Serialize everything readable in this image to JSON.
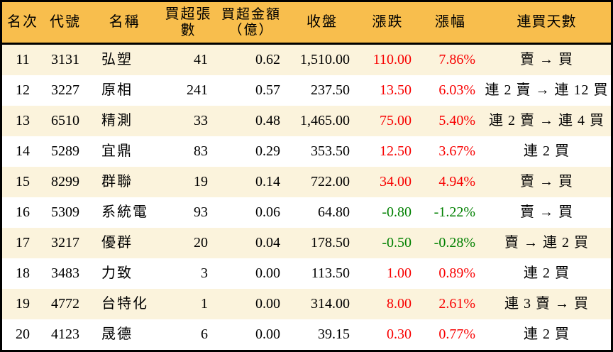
{
  "colors": {
    "header_bg": "#F8BE4D",
    "stripe_bg": "#FBF3DC",
    "row_bg": "#FFFFFF",
    "border": "#000000",
    "up_text": "#F80000",
    "down_text": "#008000",
    "text": "#000000"
  },
  "table": {
    "columns": [
      {
        "key": "rank",
        "label": "名次"
      },
      {
        "key": "code",
        "label": "代號"
      },
      {
        "key": "name",
        "label": "名稱"
      },
      {
        "key": "volume",
        "label": "買超張數"
      },
      {
        "key": "amount",
        "label": "買超金額\n（億）"
      },
      {
        "key": "close",
        "label": "收盤"
      },
      {
        "key": "change",
        "label": "漲跌"
      },
      {
        "key": "change_pct",
        "label": "漲幅"
      },
      {
        "key": "streak",
        "label": "連買天數"
      }
    ],
    "rows": [
      {
        "rank": "11",
        "code": "3131",
        "name": "弘塑",
        "volume": "41",
        "amount": "0.62",
        "close": "1,510.00",
        "change": "110.00",
        "change_pct": "7.86%",
        "streak": "賣 → 買",
        "dir": "up"
      },
      {
        "rank": "12",
        "code": "3227",
        "name": "原相",
        "volume": "241",
        "amount": "0.57",
        "close": "237.50",
        "change": "13.50",
        "change_pct": "6.03%",
        "streak": "連 2 賣 → 連 12 買",
        "dir": "up"
      },
      {
        "rank": "13",
        "code": "6510",
        "name": "精測",
        "volume": "33",
        "amount": "0.48",
        "close": "1,465.00",
        "change": "75.00",
        "change_pct": "5.40%",
        "streak": "連 2 賣 → 連 4 買",
        "dir": "up"
      },
      {
        "rank": "14",
        "code": "5289",
        "name": "宜鼎",
        "volume": "83",
        "amount": "0.29",
        "close": "353.50",
        "change": "12.50",
        "change_pct": "3.67%",
        "streak": "連 2 買",
        "dir": "up"
      },
      {
        "rank": "15",
        "code": "8299",
        "name": "群聯",
        "volume": "19",
        "amount": "0.14",
        "close": "722.00",
        "change": "34.00",
        "change_pct": "4.94%",
        "streak": "賣 → 買",
        "dir": "up"
      },
      {
        "rank": "16",
        "code": "5309",
        "name": "系統電",
        "volume": "93",
        "amount": "0.06",
        "close": "64.80",
        "change": "-0.80",
        "change_pct": "-1.22%",
        "streak": "賣 → 買",
        "dir": "down"
      },
      {
        "rank": "17",
        "code": "3217",
        "name": "優群",
        "volume": "20",
        "amount": "0.04",
        "close": "178.50",
        "change": "-0.50",
        "change_pct": "-0.28%",
        "streak": "賣 → 連 2 買",
        "dir": "down"
      },
      {
        "rank": "18",
        "code": "3483",
        "name": "力致",
        "volume": "3",
        "amount": "0.00",
        "close": "113.50",
        "change": "1.00",
        "change_pct": "0.89%",
        "streak": "連 2 買",
        "dir": "up"
      },
      {
        "rank": "19",
        "code": "4772",
        "name": "台特化",
        "volume": "1",
        "amount": "0.00",
        "close": "314.00",
        "change": "8.00",
        "change_pct": "2.61%",
        "streak": "連 3 賣 → 買",
        "dir": "up"
      },
      {
        "rank": "20",
        "code": "4123",
        "name": "晟德",
        "volume": "6",
        "amount": "0.00",
        "close": "39.15",
        "change": "0.30",
        "change_pct": "0.77%",
        "streak": "連 2 買",
        "dir": "up"
      }
    ]
  }
}
